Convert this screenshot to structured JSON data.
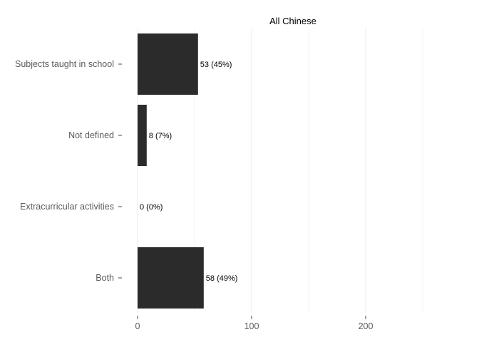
{
  "chart_data": {
    "type": "bar",
    "orientation": "horizontal",
    "title": "All Chinese",
    "categories": [
      "Subjects taught in school",
      "Not defined",
      "Extracurricular activities",
      "Both"
    ],
    "values": [
      53,
      8,
      0,
      58
    ],
    "data_labels": [
      "53 (45%)",
      "8 (7%)",
      "0 (0%)",
      "58 (49%)"
    ],
    "x_ticks": [
      0,
      100,
      200
    ],
    "x_tick_labels": [
      "0",
      "100",
      "200"
    ],
    "xlim": [
      0,
      250
    ],
    "xlabel": "",
    "ylabel": "",
    "grid": "vertical",
    "bar_color": "#2b2b2b",
    "grid_color": "#ebebeb"
  }
}
